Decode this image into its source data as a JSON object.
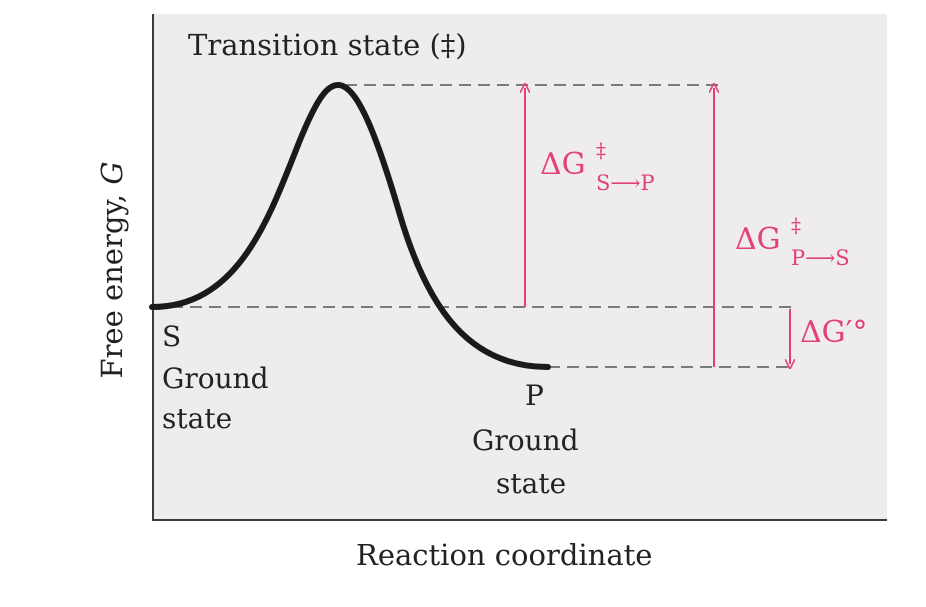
{
  "axes": {
    "x_label": "Reaction coordinate",
    "y_label_prefix": "Free energy, ",
    "y_label_var": "G"
  },
  "states": {
    "transition": "Transition state (‡)",
    "substrate": {
      "symbol": "S",
      "line1": "Ground",
      "line2": "state"
    },
    "product": {
      "symbol": "P",
      "line1": "Ground",
      "line2": "state"
    }
  },
  "energies": {
    "dg_s_p": {
      "main": "ΔG",
      "sup": "‡",
      "sub": "S⟶P"
    },
    "dg_p_s": {
      "main": "ΔG",
      "sup": "‡",
      "sub": "P⟶S"
    },
    "dg_std": "ΔG′°"
  },
  "colors": {
    "curve": "#1a1a1a",
    "guide_lines": "#555555",
    "energy_arrows": "#e2407a",
    "plot_background": "#eeeced"
  }
}
